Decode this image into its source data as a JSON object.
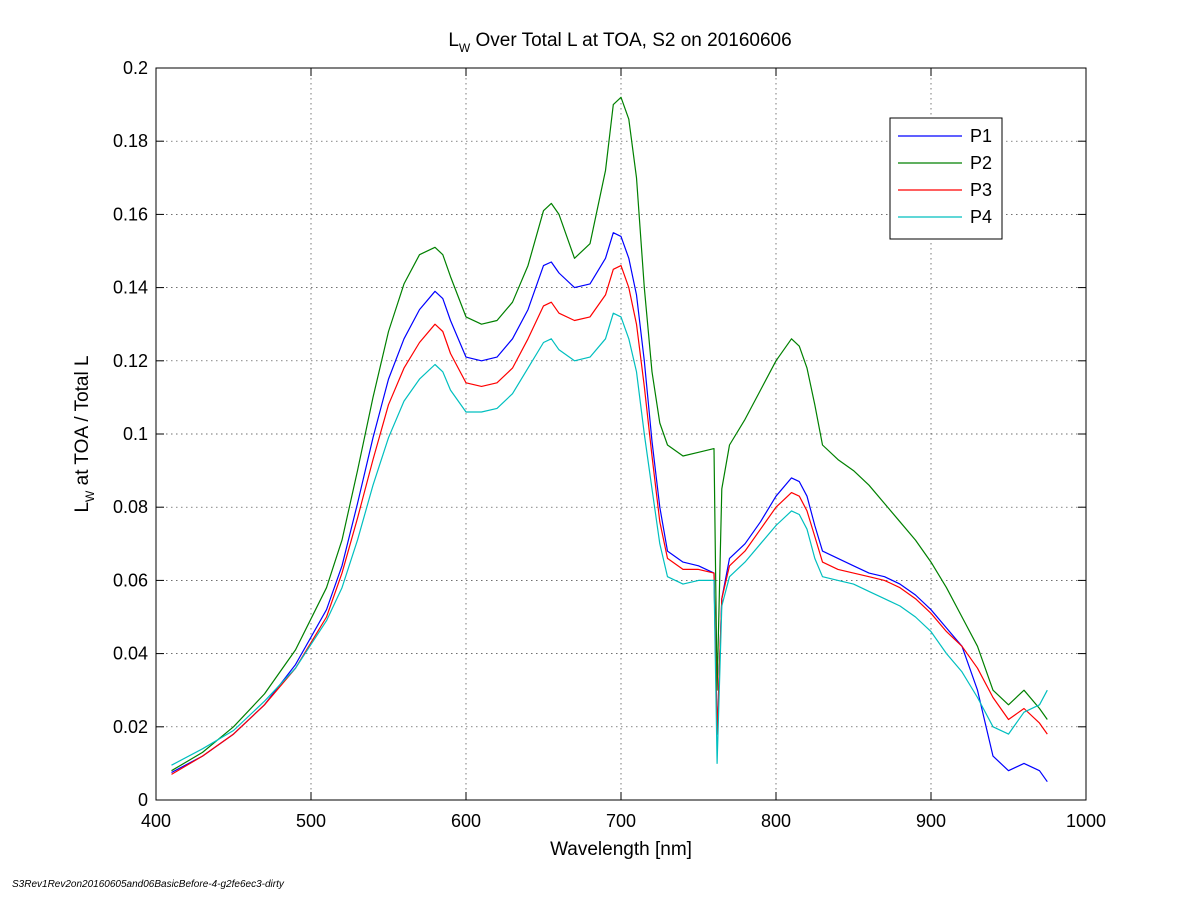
{
  "footer": "S3Rev1Rev2on20160605and06BasicBefore-4-g2fe6ec3-dirty",
  "chart_data": {
    "type": "line",
    "title": {
      "main": "L",
      "sub": "W",
      "rest": " Over Total L at TOA, S2 on 20160606"
    },
    "xlabel": "Wavelength [nm]",
    "ylabel": {
      "main": "L",
      "sub": "W",
      "rest": " at TOA / Total L"
    },
    "xlim": [
      400,
      1000
    ],
    "ylim": [
      0,
      0.2
    ],
    "xticks": [
      400,
      500,
      600,
      700,
      800,
      900,
      1000
    ],
    "yticks": [
      0,
      0.02,
      0.04,
      0.06,
      0.08,
      0.1,
      0.12,
      0.14,
      0.16,
      0.18,
      0.2
    ],
    "ytick_labels": [
      "0",
      "0.02",
      "0.04",
      "0.06",
      "0.08",
      "0.1",
      "0.12",
      "0.14",
      "0.16",
      "0.18",
      "0.2"
    ],
    "grid": true,
    "legend_position": "top-right",
    "series": [
      {
        "name": "P1",
        "color": "#0000ff",
        "x": [
          410,
          430,
          450,
          470,
          490,
          510,
          520,
          530,
          540,
          550,
          560,
          570,
          580,
          585,
          590,
          600,
          610,
          620,
          630,
          640,
          650,
          655,
          660,
          670,
          680,
          690,
          695,
          700,
          705,
          710,
          715,
          720,
          725,
          730,
          740,
          750,
          760,
          762,
          765,
          770,
          780,
          790,
          800,
          810,
          815,
          820,
          825,
          830,
          840,
          850,
          860,
          870,
          880,
          890,
          900,
          910,
          920,
          930,
          940,
          950,
          960,
          970,
          975
        ],
        "y": [
          0.0075,
          0.012,
          0.018,
          0.026,
          0.037,
          0.052,
          0.064,
          0.081,
          0.099,
          0.115,
          0.126,
          0.134,
          0.139,
          0.137,
          0.131,
          0.121,
          0.12,
          0.121,
          0.126,
          0.134,
          0.146,
          0.147,
          0.144,
          0.14,
          0.141,
          0.148,
          0.155,
          0.154,
          0.148,
          0.138,
          0.12,
          0.098,
          0.08,
          0.068,
          0.065,
          0.064,
          0.062,
          0.018,
          0.055,
          0.066,
          0.07,
          0.076,
          0.083,
          0.088,
          0.087,
          0.083,
          0.075,
          0.068,
          0.066,
          0.064,
          0.062,
          0.061,
          0.059,
          0.056,
          0.052,
          0.047,
          0.042,
          0.03,
          0.012,
          0.008,
          0.01,
          0.008,
          0.005
        ]
      },
      {
        "name": "P2",
        "color": "#008000",
        "x": [
          410,
          430,
          450,
          470,
          490,
          510,
          520,
          530,
          540,
          550,
          560,
          570,
          580,
          585,
          590,
          600,
          610,
          620,
          630,
          640,
          650,
          655,
          660,
          670,
          680,
          690,
          695,
          700,
          705,
          710,
          715,
          720,
          725,
          730,
          740,
          750,
          760,
          762,
          765,
          770,
          780,
          790,
          800,
          810,
          815,
          820,
          825,
          830,
          840,
          850,
          860,
          870,
          880,
          890,
          900,
          910,
          920,
          930,
          940,
          950,
          960,
          970,
          975
        ],
        "y": [
          0.008,
          0.013,
          0.02,
          0.029,
          0.041,
          0.058,
          0.071,
          0.09,
          0.11,
          0.128,
          0.141,
          0.149,
          0.151,
          0.149,
          0.143,
          0.132,
          0.13,
          0.131,
          0.136,
          0.146,
          0.161,
          0.163,
          0.16,
          0.148,
          0.152,
          0.172,
          0.19,
          0.192,
          0.186,
          0.17,
          0.14,
          0.117,
          0.103,
          0.097,
          0.094,
          0.095,
          0.096,
          0.03,
          0.085,
          0.097,
          0.104,
          0.112,
          0.12,
          0.126,
          0.124,
          0.118,
          0.108,
          0.097,
          0.093,
          0.09,
          0.086,
          0.081,
          0.076,
          0.071,
          0.065,
          0.058,
          0.05,
          0.042,
          0.03,
          0.026,
          0.03,
          0.025,
          0.022
        ]
      },
      {
        "name": "P3",
        "color": "#ff0000",
        "x": [
          410,
          430,
          450,
          470,
          490,
          510,
          520,
          530,
          540,
          550,
          560,
          570,
          580,
          585,
          590,
          600,
          610,
          620,
          630,
          640,
          650,
          655,
          660,
          670,
          680,
          690,
          695,
          700,
          705,
          710,
          715,
          720,
          725,
          730,
          740,
          750,
          760,
          762,
          765,
          770,
          780,
          790,
          800,
          810,
          815,
          820,
          825,
          830,
          840,
          850,
          860,
          870,
          880,
          890,
          900,
          910,
          920,
          930,
          940,
          950,
          960,
          970,
          975
        ],
        "y": [
          0.007,
          0.012,
          0.018,
          0.026,
          0.036,
          0.05,
          0.062,
          0.077,
          0.093,
          0.108,
          0.118,
          0.125,
          0.13,
          0.128,
          0.122,
          0.114,
          0.113,
          0.114,
          0.118,
          0.126,
          0.135,
          0.136,
          0.133,
          0.131,
          0.132,
          0.138,
          0.145,
          0.146,
          0.14,
          0.13,
          0.113,
          0.094,
          0.076,
          0.066,
          0.063,
          0.063,
          0.062,
          0.018,
          0.055,
          0.064,
          0.068,
          0.074,
          0.08,
          0.084,
          0.083,
          0.079,
          0.072,
          0.065,
          0.063,
          0.062,
          0.061,
          0.06,
          0.058,
          0.055,
          0.051,
          0.046,
          0.042,
          0.036,
          0.028,
          0.022,
          0.025,
          0.021,
          0.018
        ]
      },
      {
        "name": "P4",
        "color": "#00bfbf",
        "x": [
          410,
          430,
          450,
          470,
          490,
          510,
          520,
          530,
          540,
          550,
          560,
          570,
          580,
          585,
          590,
          600,
          610,
          620,
          630,
          640,
          650,
          655,
          660,
          670,
          680,
          690,
          695,
          700,
          705,
          710,
          715,
          720,
          725,
          730,
          740,
          750,
          760,
          762,
          765,
          770,
          780,
          790,
          800,
          810,
          815,
          820,
          825,
          830,
          840,
          850,
          860,
          870,
          880,
          890,
          900,
          910,
          920,
          930,
          940,
          950,
          960,
          970,
          975
        ],
        "y": [
          0.0095,
          0.014,
          0.019,
          0.027,
          0.036,
          0.049,
          0.058,
          0.071,
          0.086,
          0.099,
          0.109,
          0.115,
          0.119,
          0.117,
          0.112,
          0.106,
          0.106,
          0.107,
          0.111,
          0.118,
          0.125,
          0.126,
          0.123,
          0.12,
          0.121,
          0.126,
          0.133,
          0.132,
          0.126,
          0.117,
          0.1,
          0.085,
          0.07,
          0.061,
          0.059,
          0.06,
          0.06,
          0.01,
          0.053,
          0.061,
          0.065,
          0.07,
          0.075,
          0.079,
          0.078,
          0.074,
          0.066,
          0.061,
          0.06,
          0.059,
          0.057,
          0.055,
          0.053,
          0.05,
          0.046,
          0.04,
          0.035,
          0.028,
          0.02,
          0.018,
          0.024,
          0.026,
          0.03
        ]
      }
    ]
  }
}
